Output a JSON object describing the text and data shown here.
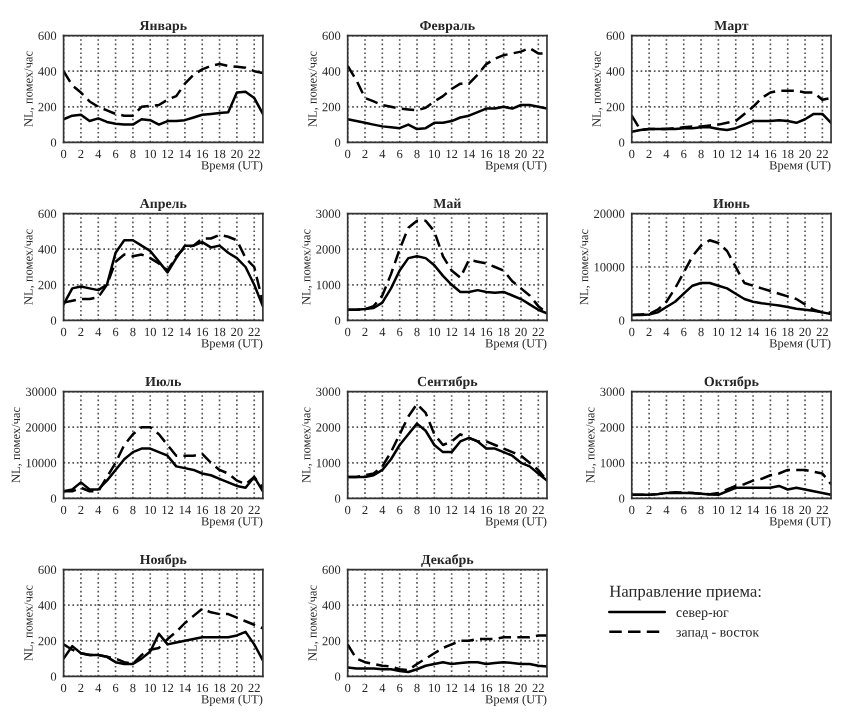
{
  "chart_data": [
    {
      "type": "line",
      "title": "Январь",
      "xlabel": "Время (UT)",
      "ylabel": "NL, помех/час",
      "x": [
        0,
        1,
        2,
        3,
        4,
        5,
        6,
        7,
        8,
        9,
        10,
        11,
        12,
        13,
        14,
        15,
        16,
        17,
        18,
        19,
        20,
        21,
        22,
        23
      ],
      "xlim": [
        0,
        23
      ],
      "xticks": [
        0,
        2,
        4,
        6,
        8,
        10,
        12,
        14,
        16,
        18,
        20,
        22
      ],
      "ylim": [
        0,
        600
      ],
      "yticks": [
        0,
        200,
        400,
        600
      ],
      "grid": true,
      "series": [
        {
          "color": "#000000",
          "line_style": "solid",
          "values": [
            130,
            150,
            155,
            120,
            135,
            115,
            105,
            100,
            100,
            130,
            125,
            100,
            120,
            120,
            125,
            140,
            155,
            160,
            165,
            170,
            280,
            285,
            250,
            160
          ]
        },
        {
          "color": "#000000",
          "line_style": "dashed",
          "values": [
            400,
            320,
            280,
            230,
            200,
            180,
            160,
            150,
            150,
            200,
            205,
            210,
            240,
            260,
            330,
            380,
            410,
            430,
            440,
            430,
            425,
            420,
            400,
            390
          ]
        }
      ]
    },
    {
      "type": "line",
      "title": "Февраль",
      "xlabel": "Время (UT)",
      "ylabel": "NL, помех/час",
      "x": [
        0,
        1,
        2,
        3,
        4,
        5,
        6,
        7,
        8,
        9,
        10,
        11,
        12,
        13,
        14,
        15,
        16,
        17,
        18,
        19,
        20,
        21,
        22,
        23
      ],
      "xlim": [
        0,
        23
      ],
      "xticks": [
        0,
        2,
        4,
        6,
        8,
        10,
        12,
        14,
        16,
        18,
        20,
        22
      ],
      "ylim": [
        0,
        600
      ],
      "yticks": [
        0,
        200,
        400,
        600
      ],
      "grid": true,
      "series": [
        {
          "color": "#000000",
          "line_style": "solid",
          "values": [
            130,
            120,
            110,
            100,
            90,
            85,
            80,
            100,
            75,
            80,
            110,
            110,
            120,
            140,
            150,
            170,
            190,
            190,
            200,
            190,
            210,
            210,
            200,
            190
          ]
        },
        {
          "color": "#000000",
          "line_style": "dashed",
          "values": [
            430,
            350,
            250,
            230,
            210,
            200,
            190,
            185,
            180,
            195,
            230,
            260,
            300,
            330,
            330,
            380,
            440,
            470,
            490,
            500,
            510,
            530,
            500,
            500
          ]
        }
      ]
    },
    {
      "type": "line",
      "title": "Март",
      "xlabel": "Время (UT)",
      "ylabel": "NL, помех/час",
      "x": [
        0,
        1,
        2,
        3,
        4,
        5,
        6,
        7,
        8,
        9,
        10,
        11,
        12,
        13,
        14,
        15,
        16,
        17,
        18,
        19,
        20,
        21,
        22,
        23
      ],
      "xlim": [
        0,
        23
      ],
      "xticks": [
        0,
        2,
        4,
        6,
        8,
        10,
        12,
        14,
        16,
        18,
        20,
        22
      ],
      "ylim": [
        0,
        600
      ],
      "yticks": [
        0,
        200,
        400,
        600
      ],
      "grid": true,
      "series": [
        {
          "color": "#000000",
          "line_style": "solid",
          "values": [
            60,
            70,
            75,
            75,
            75,
            75,
            80,
            80,
            85,
            85,
            75,
            70,
            80,
            100,
            120,
            120,
            120,
            125,
            120,
            110,
            130,
            160,
            160,
            110
          ]
        },
        {
          "color": "#000000",
          "line_style": "dashed",
          "values": [
            150,
            70,
            75,
            75,
            75,
            80,
            85,
            90,
            90,
            95,
            100,
            110,
            120,
            160,
            200,
            250,
            280,
            290,
            290,
            290,
            280,
            280,
            240,
            250
          ]
        }
      ]
    },
    {
      "type": "line",
      "title": "Апрель",
      "xlabel": "Время (UT)",
      "ylabel": "NL, помех/час",
      "x": [
        0,
        1,
        2,
        3,
        4,
        5,
        6,
        7,
        8,
        9,
        10,
        11,
        12,
        13,
        14,
        15,
        16,
        17,
        18,
        19,
        20,
        21,
        22,
        23
      ],
      "xlim": [
        0,
        23
      ],
      "xticks": [
        0,
        2,
        4,
        6,
        8,
        10,
        12,
        14,
        16,
        18,
        20,
        22
      ],
      "ylim": [
        0,
        600
      ],
      "yticks": [
        0,
        200,
        400,
        600
      ],
      "grid": true,
      "series": [
        {
          "color": "#000000",
          "line_style": "solid",
          "values": [
            90,
            180,
            190,
            180,
            170,
            200,
            380,
            450,
            450,
            420,
            390,
            330,
            270,
            350,
            420,
            420,
            440,
            410,
            420,
            380,
            350,
            300,
            200,
            80
          ]
        },
        {
          "color": "#000000",
          "line_style": "dashed",
          "values": [
            100,
            110,
            120,
            120,
            130,
            200,
            330,
            370,
            360,
            370,
            350,
            320,
            280,
            360,
            410,
            420,
            460,
            460,
            480,
            470,
            450,
            350,
            300,
            100
          ]
        }
      ]
    },
    {
      "type": "line",
      "title": "Май",
      "xlabel": "Время (UT)",
      "ylabel": "NL, помех/час",
      "x": [
        0,
        1,
        2,
        3,
        4,
        5,
        6,
        7,
        8,
        9,
        10,
        11,
        12,
        13,
        14,
        15,
        16,
        17,
        18,
        19,
        20,
        21,
        22,
        23
      ],
      "xlim": [
        0,
        23
      ],
      "xticks": [
        0,
        2,
        4,
        6,
        8,
        10,
        12,
        14,
        16,
        18,
        20,
        22
      ],
      "ylim": [
        0,
        3000
      ],
      "yticks": [
        0,
        1000,
        2000,
        3000
      ],
      "grid": true,
      "series": [
        {
          "color": "#000000",
          "line_style": "solid",
          "values": [
            300,
            300,
            320,
            350,
            500,
            900,
            1400,
            1750,
            1800,
            1750,
            1550,
            1250,
            1000,
            800,
            800,
            850,
            800,
            780,
            800,
            700,
            600,
            450,
            300,
            200
          ]
        },
        {
          "color": "#000000",
          "line_style": "dashed",
          "values": [
            300,
            300,
            320,
            400,
            700,
            1300,
            2000,
            2600,
            2800,
            2800,
            2500,
            1800,
            1400,
            1200,
            1700,
            1650,
            1600,
            1500,
            1400,
            1100,
            900,
            700,
            400,
            200
          ]
        }
      ]
    },
    {
      "type": "line",
      "title": "Июнь",
      "xlabel": "Время (UT)",
      "ylabel": "NL, помех/час",
      "x": [
        0,
        1,
        2,
        3,
        4,
        5,
        6,
        7,
        8,
        9,
        10,
        11,
        12,
        13,
        14,
        15,
        16,
        17,
        18,
        19,
        20,
        21,
        22,
        23
      ],
      "xlim": [
        0,
        23
      ],
      "xticks": [
        0,
        2,
        4,
        6,
        8,
        10,
        12,
        14,
        16,
        18,
        20,
        22
      ],
      "ylim": [
        0,
        20000
      ],
      "yticks": [
        0,
        10000,
        20000
      ],
      "grid": true,
      "series": [
        {
          "color": "#000000",
          "line_style": "solid",
          "values": [
            1000,
            1000,
            1100,
            1500,
            2500,
            3500,
            5000,
            6500,
            7000,
            7000,
            6500,
            6000,
            5000,
            4000,
            3500,
            3200,
            3000,
            2800,
            2500,
            2200,
            2000,
            1800,
            1500,
            1200
          ]
        },
        {
          "color": "#000000",
          "line_style": "dashed",
          "values": [
            1000,
            1100,
            1200,
            2000,
            3500,
            6000,
            9000,
            12000,
            14000,
            15000,
            14500,
            13000,
            10000,
            7000,
            6500,
            6000,
            5500,
            5000,
            4500,
            4000,
            3000,
            2000,
            1500,
            1500
          ]
        }
      ]
    },
    {
      "type": "line",
      "title": "Июль",
      "xlabel": "Время (UT)",
      "ylabel": "NL, помех/час",
      "x": [
        0,
        1,
        2,
        3,
        4,
        5,
        6,
        7,
        8,
        9,
        10,
        11,
        12,
        13,
        14,
        15,
        16,
        17,
        18,
        19,
        20,
        21,
        22,
        23
      ],
      "xlim": [
        0,
        23
      ],
      "xticks": [
        0,
        2,
        4,
        6,
        8,
        10,
        12,
        14,
        16,
        18,
        20,
        22
      ],
      "ylim": [
        0,
        30000
      ],
      "yticks": [
        0,
        10000,
        20000,
        30000
      ],
      "grid": true,
      "series": [
        {
          "color": "#000000",
          "line_style": "solid",
          "values": [
            2000,
            2500,
            4500,
            2500,
            2500,
            5000,
            8000,
            11000,
            13000,
            14000,
            14000,
            13000,
            12000,
            9000,
            8500,
            8000,
            7000,
            6500,
            5500,
            4500,
            3500,
            3000,
            6000,
            2000
          ]
        },
        {
          "color": "#000000",
          "line_style": "dashed",
          "values": [
            2000,
            2000,
            3000,
            2000,
            2000,
            6000,
            10000,
            15000,
            18000,
            20000,
            20000,
            18000,
            15000,
            12000,
            12000,
            12000,
            12500,
            10000,
            8000,
            7000,
            5000,
            4000,
            6000,
            3000
          ]
        }
      ]
    },
    {
      "type": "line",
      "title": "Сентябрь",
      "xlabel": "Время (UT)",
      "ylabel": "NL, помех/час",
      "x": [
        0,
        1,
        2,
        3,
        4,
        5,
        6,
        7,
        8,
        9,
        10,
        11,
        12,
        13,
        14,
        15,
        16,
        17,
        18,
        19,
        20,
        21,
        22,
        23
      ],
      "xlim": [
        0,
        23
      ],
      "xticks": [
        0,
        2,
        4,
        6,
        8,
        10,
        12,
        14,
        16,
        18,
        20,
        22
      ],
      "ylim": [
        0,
        3000
      ],
      "yticks": [
        0,
        1000,
        2000,
        3000
      ],
      "grid": true,
      "series": [
        {
          "color": "#000000",
          "line_style": "solid",
          "values": [
            600,
            600,
            600,
            650,
            800,
            1100,
            1500,
            1800,
            2100,
            1900,
            1500,
            1300,
            1300,
            1600,
            1700,
            1600,
            1400,
            1400,
            1300,
            1200,
            1000,
            900,
            700,
            500
          ]
        },
        {
          "color": "#000000",
          "line_style": "dashed",
          "values": [
            600,
            600,
            650,
            700,
            900,
            1300,
            1800,
            2300,
            2650,
            2400,
            1800,
            1500,
            1600,
            1800,
            1700,
            1600,
            1600,
            1500,
            1400,
            1300,
            1200,
            1000,
            800,
            500
          ]
        }
      ]
    },
    {
      "type": "line",
      "title": "Октябрь",
      "xlabel": "Время (UT)",
      "ylabel": "NL, помех/час",
      "x": [
        0,
        1,
        2,
        3,
        4,
        5,
        6,
        7,
        8,
        9,
        10,
        11,
        12,
        13,
        14,
        15,
        16,
        17,
        18,
        19,
        20,
        21,
        22,
        23
      ],
      "xlim": [
        0,
        23
      ],
      "xticks": [
        0,
        2,
        4,
        6,
        8,
        10,
        12,
        14,
        16,
        18,
        20,
        22
      ],
      "ylim": [
        0,
        3000
      ],
      "yticks": [
        0,
        1000,
        2000,
        3000
      ],
      "grid": true,
      "series": [
        {
          "color": "#000000",
          "line_style": "solid",
          "values": [
            100,
            100,
            100,
            120,
            150,
            150,
            150,
            150,
            130,
            110,
            100,
            200,
            300,
            300,
            300,
            300,
            300,
            350,
            250,
            300,
            250,
            200,
            150,
            100
          ]
        },
        {
          "color": "#000000",
          "line_style": "dashed",
          "values": [
            100,
            100,
            100,
            120,
            150,
            170,
            160,
            150,
            130,
            120,
            150,
            250,
            350,
            400,
            500,
            550,
            650,
            700,
            800,
            800,
            800,
            750,
            700,
            400
          ]
        }
      ]
    },
    {
      "type": "line",
      "title": "Ноябрь",
      "xlabel": "Время (UT)",
      "ylabel": "NL, помех/час",
      "x": [
        0,
        1,
        2,
        3,
        4,
        5,
        6,
        7,
        8,
        9,
        10,
        11,
        12,
        13,
        14,
        15,
        16,
        17,
        18,
        19,
        20,
        21,
        22,
        23
      ],
      "xlim": [
        0,
        23
      ],
      "xticks": [
        0,
        2,
        4,
        6,
        8,
        10,
        12,
        14,
        16,
        18,
        20,
        22
      ],
      "ylim": [
        0,
        600
      ],
      "yticks": [
        0,
        200,
        400,
        600
      ],
      "grid": true,
      "series": [
        {
          "color": "#000000",
          "line_style": "solid",
          "values": [
            100,
            170,
            130,
            120,
            120,
            110,
            80,
            70,
            70,
            100,
            140,
            240,
            180,
            190,
            200,
            210,
            220,
            220,
            220,
            220,
            230,
            250,
            180,
            90
          ]
        },
        {
          "color": "#000000",
          "line_style": "dashed",
          "values": [
            180,
            150,
            130,
            120,
            120,
            110,
            100,
            80,
            70,
            120,
            150,
            160,
            210,
            250,
            300,
            340,
            380,
            360,
            350,
            350,
            330,
            310,
            290,
            270
          ]
        }
      ]
    },
    {
      "type": "line",
      "title": "Декабрь",
      "xlabel": "Время (UT)",
      "ylabel": "NL, помех/час",
      "legend_title": "Направление приема:",
      "legend": "right",
      "x": [
        0,
        1,
        2,
        3,
        4,
        5,
        6,
        7,
        8,
        9,
        10,
        11,
        12,
        13,
        14,
        15,
        16,
        17,
        18,
        19,
        20,
        21,
        22,
        23
      ],
      "xlim": [
        0,
        23
      ],
      "xticks": [
        0,
        2,
        4,
        6,
        8,
        10,
        12,
        14,
        16,
        18,
        20,
        22
      ],
      "ylim": [
        0,
        600
      ],
      "yticks": [
        0,
        200,
        400,
        600
      ],
      "grid": true,
      "series": [
        {
          "name": "север-юг",
          "color": "#000000",
          "line_style": "solid",
          "values": [
            50,
            45,
            45,
            45,
            40,
            40,
            30,
            25,
            40,
            60,
            70,
            80,
            70,
            75,
            80,
            80,
            70,
            75,
            80,
            75,
            70,
            70,
            60,
            55
          ]
        },
        {
          "name": "запад - восток",
          "color": "#000000",
          "line_style": "dashed",
          "values": [
            180,
            100,
            80,
            70,
            60,
            55,
            40,
            35,
            70,
            100,
            130,
            160,
            180,
            200,
            200,
            210,
            210,
            210,
            220,
            220,
            220,
            220,
            230,
            230
          ]
        }
      ]
    }
  ]
}
